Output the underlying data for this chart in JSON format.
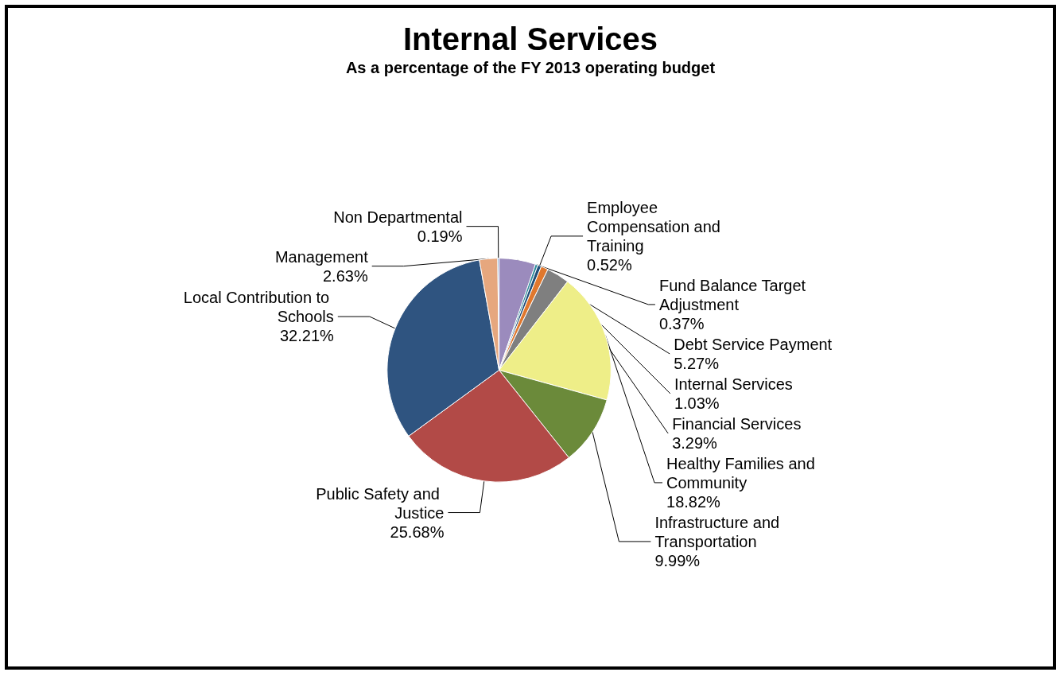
{
  "chart_data": {
    "type": "pie",
    "title": "Internal Services",
    "subtitle": "As a percentage of the FY 2013 operating budget",
    "categories": [
      "Debt Service Payment",
      "Fund Balance Target Adjustment",
      "Employee Compensation and Training",
      "Internal Services",
      "Financial Services",
      "Healthy Families and Community",
      "Infrastructure and Transportation",
      "Public Safety and Justice",
      "Local Contribution to Schools",
      "Management",
      "Non Departmental"
    ],
    "values": [
      5.27,
      0.37,
      0.52,
      1.03,
      3.29,
      18.82,
      9.99,
      25.68,
      32.21,
      2.63,
      0.19
    ],
    "value_labels": [
      "5.27%",
      "0.37%",
      "0.52%",
      "1.03%",
      "3.29%",
      "18.82%",
      "9.99%",
      "25.68%",
      "32.21%",
      "2.63%",
      "0.19%"
    ],
    "colors": [
      "#9b8bbd",
      "#2f8c9c",
      "#1f4e79",
      "#e0782e",
      "#7f7f7f",
      "#eeee88",
      "#6b8a3a",
      "#b24a47",
      "#2f5480",
      "#e6a77e",
      "#4f81bd"
    ],
    "legend": false
  }
}
